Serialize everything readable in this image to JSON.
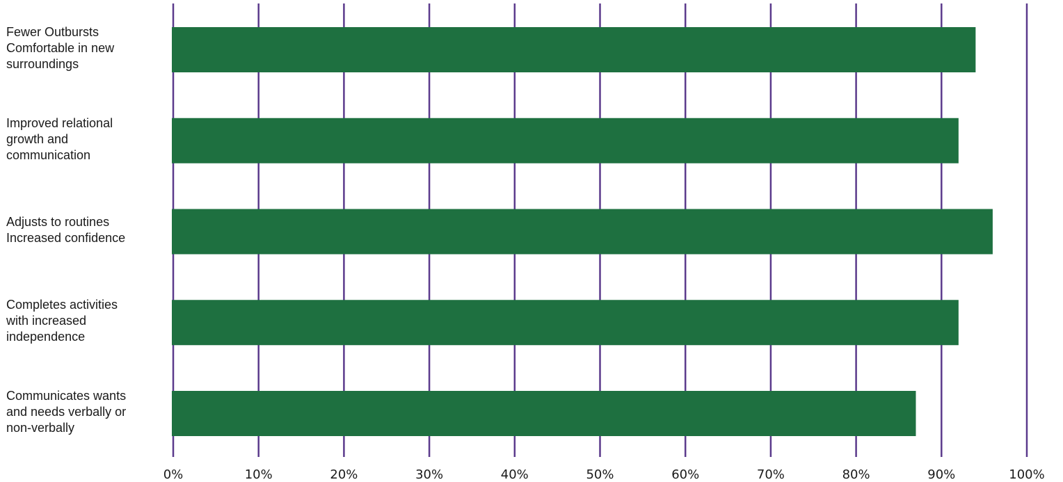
{
  "colors": {
    "bar": "#1e7040",
    "grid": "#5b3a8c",
    "text": "#1a1a1a"
  },
  "chart_data": {
    "type": "bar",
    "orientation": "horizontal",
    "title": "",
    "xlabel": "",
    "ylabel": "",
    "grid": true,
    "xlim": [
      0,
      100
    ],
    "x_unit": "%",
    "x_ticks": [
      "0%",
      "10%",
      "20%",
      "30%",
      "40%",
      "50%",
      "60%",
      "70%",
      "80%",
      "90%",
      "100%"
    ],
    "categories": [
      [
        "Fewer Outbursts",
        "Comfortable in new",
        "surroundings"
      ],
      [
        "Improved relational",
        "growth and",
        "communication"
      ],
      [
        "Adjusts to routines",
        "Increased confidence"
      ],
      [
        "Completes activities",
        "with increased",
        "independence"
      ],
      [
        "Communicates wants",
        "and needs verbally or",
        "non-verbally"
      ]
    ],
    "values": [
      94,
      92,
      96,
      92,
      87
    ]
  }
}
